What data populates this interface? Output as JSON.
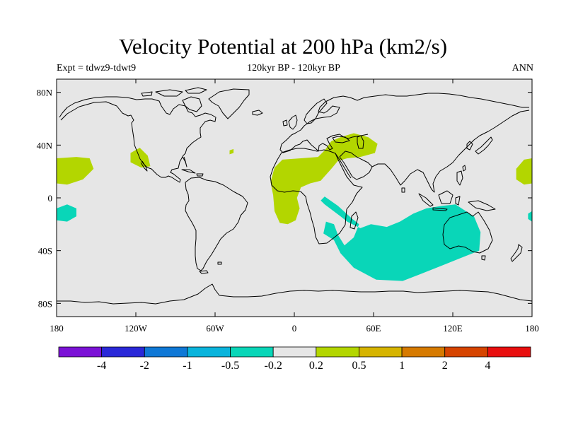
{
  "title": "Velocity Potential at 200 hPa (km2/s)",
  "left_subtitle": "Expt = tdwz9-tdwt9",
  "center_subtitle": "120kyr BP - 120kyr BP",
  "right_subtitle": "ANN",
  "map": {
    "projection": "cylindrical-equidistant",
    "lon_range": [
      -180,
      180
    ],
    "lat_range": [
      -90,
      90
    ],
    "background_color": "#e6e6e6",
    "coastline_color": "#000000",
    "lat_ticks": [
      {
        "value": 80,
        "label": "80N"
      },
      {
        "value": 40,
        "label": "40N"
      },
      {
        "value": 0,
        "label": "0"
      },
      {
        "value": -40,
        "label": "40S"
      },
      {
        "value": -80,
        "label": "80S"
      }
    ],
    "lon_ticks": [
      {
        "value": -180,
        "label": "180"
      },
      {
        "value": -120,
        "label": "120W"
      },
      {
        "value": -60,
        "label": "60W"
      },
      {
        "value": 0,
        "label": "0"
      },
      {
        "value": 60,
        "label": "60E"
      },
      {
        "value": 120,
        "label": "120E"
      },
      {
        "value": 180,
        "label": "180"
      }
    ]
  },
  "colorbar": {
    "colors": [
      "#7b12d6",
      "#2a28d8",
      "#0f78d6",
      "#0ab4dc",
      "#09d6b8",
      "#e6e6e6",
      "#b3d600",
      "#d6b400",
      "#d67a00",
      "#d64400",
      "#e80f0f"
    ],
    "labels": [
      "-4",
      "-2",
      "-1",
      "-0.5",
      "-0.2",
      "0.2",
      "0.5",
      "1",
      "2",
      "4"
    ]
  },
  "chart_data": {
    "type": "heatmap",
    "title": "Velocity Potential at 200 hPa (km2/s)",
    "variable": "velocity potential difference",
    "units": "km2/s",
    "level": "200 hPa",
    "x_range": [
      -180,
      180
    ],
    "y_range": [
      -90,
      90
    ],
    "contour_levels": [
      -4,
      -2,
      -1,
      -0.5,
      -0.2,
      0.2,
      0.5,
      1,
      2,
      4
    ],
    "regions": [
      {
        "band": "0.2 to 0.5",
        "color": "#b3d600",
        "name": "Central Pacific",
        "points": [
          [
            -180,
            30
          ],
          [
            -165,
            31
          ],
          [
            -155,
            30
          ],
          [
            -152,
            22
          ],
          [
            -160,
            14
          ],
          [
            -172,
            10
          ],
          [
            -180,
            11
          ]
        ]
      },
      {
        "band": "0.2 to 0.5",
        "color": "#b3d600",
        "name": "Western Pacific dateline",
        "points": [
          [
            180,
            30
          ],
          [
            174,
            29
          ],
          [
            168,
            22
          ],
          [
            168,
            14
          ],
          [
            174,
            10
          ],
          [
            180,
            11
          ]
        ]
      },
      {
        "band": "0.2 to 0.5",
        "color": "#b3d600",
        "name": "Mexico",
        "points": [
          [
            -124,
            34
          ],
          [
            -117,
            38
          ],
          [
            -111,
            32
          ],
          [
            -109,
            24
          ],
          [
            -116,
            23
          ],
          [
            -124,
            27
          ]
        ]
      },
      {
        "band": "0.2 to 0.5",
        "color": "#b3d600",
        "name": "North Atlantic speck",
        "points": [
          [
            -49,
            36
          ],
          [
            -46,
            37
          ],
          [
            -46,
            34
          ],
          [
            -49,
            33
          ]
        ]
      },
      {
        "band": "0.2 to 0.5",
        "color": "#b3d600",
        "name": "Africa and Middle East",
        "points": [
          [
            -15,
            23
          ],
          [
            -9,
            29
          ],
          [
            5,
            30
          ],
          [
            18,
            31
          ],
          [
            23,
            36
          ],
          [
            28,
            43
          ],
          [
            35,
            46
          ],
          [
            45,
            49
          ],
          [
            56,
            46
          ],
          [
            63,
            41
          ],
          [
            61,
            34
          ],
          [
            50,
            31
          ],
          [
            40,
            30
          ],
          [
            33,
            28
          ],
          [
            28,
            22
          ],
          [
            20,
            13
          ],
          [
            12,
            11
          ],
          [
            5,
            8
          ],
          [
            2,
            0
          ],
          [
            4,
            -8
          ],
          [
            1,
            -17
          ],
          [
            -5,
            -20
          ],
          [
            -11,
            -19
          ],
          [
            -15,
            -10
          ],
          [
            -16,
            2
          ],
          [
            -18,
            12
          ]
        ]
      },
      {
        "band": "-0.5 to -0.2",
        "color": "#09d6b8",
        "name": "Indian Ocean",
        "points": [
          [
            35,
            -14
          ],
          [
            40,
            -18
          ],
          [
            50,
            -23
          ],
          [
            58,
            -20
          ],
          [
            70,
            -22
          ],
          [
            80,
            -18
          ],
          [
            90,
            -12
          ],
          [
            100,
            -8
          ],
          [
            112,
            -6
          ],
          [
            122,
            -5
          ],
          [
            136,
            -14
          ],
          [
            141,
            -26
          ],
          [
            140,
            -40
          ],
          [
            125,
            -46
          ],
          [
            110,
            -52
          ],
          [
            95,
            -58
          ],
          [
            82,
            -63
          ],
          [
            62,
            -62
          ],
          [
            45,
            -53
          ],
          [
            35,
            -42
          ],
          [
            30,
            -32
          ],
          [
            22,
            -27
          ],
          [
            24,
            -18
          ],
          [
            30,
            -20
          ],
          [
            33,
            -28
          ],
          [
            38,
            -36
          ],
          [
            45,
            -30
          ],
          [
            49,
            -20
          ],
          [
            44,
            -16
          ],
          [
            33,
            -6
          ],
          [
            23,
            1
          ],
          [
            20,
            -2
          ],
          [
            23,
            -5
          ]
        ]
      },
      {
        "band": "-0.5 to -0.2",
        "color": "#09d6b8",
        "name": "South Pacific near Hawaii",
        "points": [
          [
            -180,
            -8
          ],
          [
            -172,
            -5
          ],
          [
            -165,
            -8
          ],
          [
            -165,
            -14
          ],
          [
            -172,
            -18
          ],
          [
            -180,
            -17
          ]
        ]
      },
      {
        "band": "-0.5 to -0.2",
        "color": "#09d6b8",
        "name": "Pacific edge",
        "points": [
          [
            180,
            -10
          ],
          [
            177,
            -12
          ],
          [
            177,
            -16
          ],
          [
            180,
            -18
          ]
        ]
      }
    ]
  }
}
